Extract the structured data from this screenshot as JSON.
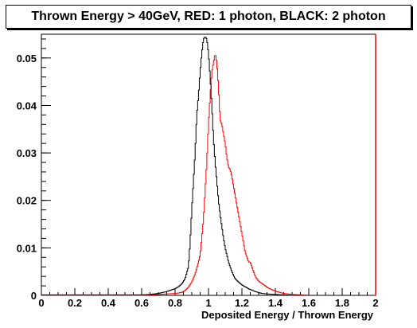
{
  "chart_data": {
    "type": "histogram",
    "title": "Thrown Energy > 40GeV, RED: 1 photon, BLACK: 2 photon",
    "xlabel": "Deposited Energy / Thrown Energy",
    "ylabel": "",
    "xlim": [
      0,
      2
    ],
    "ylim": [
      0,
      0.055
    ],
    "grid": false,
    "x_ticks": [
      "0",
      "0.2",
      "0.4",
      "0.6",
      "0.8",
      "1",
      "1.2",
      "1.4",
      "1.6",
      "1.8",
      "2"
    ],
    "x_tick_values": [
      0,
      0.2,
      0.4,
      0.6,
      0.8,
      1.0,
      1.2,
      1.4,
      1.6,
      1.8,
      2.0
    ],
    "y_ticks": [
      "0",
      "0.01",
      "0.02",
      "0.03",
      "0.04",
      "0.05"
    ],
    "y_tick_values": [
      0,
      0.01,
      0.02,
      0.03,
      0.04,
      0.05
    ],
    "series": [
      {
        "color": "#ff0000",
        "x": [
          0.6,
          0.65,
          0.7,
          0.75,
          0.8,
          0.84,
          0.86,
          0.88,
          0.9,
          0.92,
          0.94,
          0.95,
          0.96,
          0.97,
          0.98,
          0.99,
          1.0,
          1.01,
          1.02,
          1.03,
          1.04,
          1.05,
          1.06,
          1.07,
          1.08,
          1.09,
          1.1,
          1.11,
          1.12,
          1.13,
          1.14,
          1.15,
          1.16,
          1.17,
          1.18,
          1.19,
          1.2,
          1.21,
          1.22,
          1.23,
          1.24,
          1.25,
          1.26,
          1.28,
          1.3,
          1.32,
          1.34,
          1.36,
          1.38,
          1.4,
          1.42,
          1.45,
          1.5,
          1.55,
          1.6,
          1.65
        ],
        "y": [
          0.0,
          0.0001,
          0.0002,
          0.0003,
          0.0004,
          0.0006,
          0.001,
          0.0017,
          0.0028,
          0.0045,
          0.007,
          0.0085,
          0.012,
          0.016,
          0.022,
          0.028,
          0.036,
          0.042,
          0.047,
          0.049,
          0.051,
          0.049,
          0.044,
          0.037,
          0.036,
          0.034,
          0.032,
          0.029,
          0.027,
          0.0265,
          0.025,
          0.023,
          0.021,
          0.019,
          0.017,
          0.015,
          0.013,
          0.011,
          0.009,
          0.008,
          0.007,
          0.007,
          0.006,
          0.004,
          0.003,
          0.0025,
          0.002,
          0.0015,
          0.0012,
          0.0009,
          0.0007,
          0.0004,
          0.0002,
          0.0001,
          0.0,
          0.0
        ]
      },
      {
        "color": "#000000",
        "x": [
          0.6,
          0.65,
          0.7,
          0.75,
          0.8,
          0.82,
          0.84,
          0.86,
          0.88,
          0.89,
          0.9,
          0.91,
          0.92,
          0.93,
          0.94,
          0.95,
          0.96,
          0.97,
          0.98,
          0.99,
          1.0,
          1.01,
          1.02,
          1.03,
          1.04,
          1.05,
          1.06,
          1.07,
          1.08,
          1.09,
          1.1,
          1.11,
          1.12,
          1.13,
          1.14,
          1.15,
          1.16,
          1.18,
          1.2,
          1.22,
          1.24,
          1.26,
          1.28,
          1.3,
          1.32,
          1.35,
          1.4,
          1.45,
          1.5,
          1.55
        ],
        "y": [
          0.0001,
          0.0002,
          0.0004,
          0.0008,
          0.0014,
          0.0018,
          0.0024,
          0.0035,
          0.006,
          0.011,
          0.018,
          0.024,
          0.03,
          0.038,
          0.042,
          0.047,
          0.051,
          0.054,
          0.0545,
          0.054,
          0.051,
          0.046,
          0.04,
          0.033,
          0.028,
          0.024,
          0.02,
          0.017,
          0.0145,
          0.012,
          0.01,
          0.0085,
          0.007,
          0.006,
          0.005,
          0.0042,
          0.0035,
          0.0028,
          0.0022,
          0.0018,
          0.0014,
          0.0011,
          0.0008,
          0.0006,
          0.0004,
          0.0003,
          0.0002,
          0.0001,
          0.0,
          0.0
        ]
      }
    ]
  }
}
